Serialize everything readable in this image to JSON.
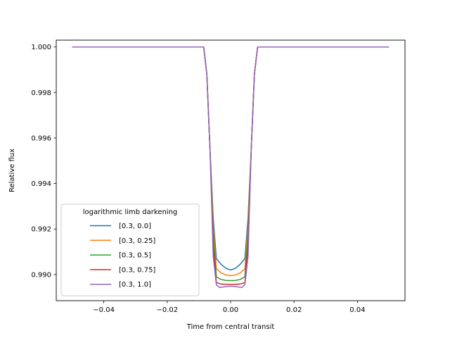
{
  "chart_data": {
    "type": "line",
    "xlabel": "Time from central transit",
    "ylabel": "Relative flux",
    "xlim": [
      -0.055,
      0.055
    ],
    "ylim": [
      0.98885,
      1.0003
    ],
    "x_ticks": [
      -0.04,
      -0.02,
      0.0,
      0.02,
      0.04
    ],
    "x_tick_labels": [
      "−0.04",
      "−0.02",
      "0.00",
      "0.02",
      "0.04"
    ],
    "y_ticks": [
      0.99,
      0.992,
      0.994,
      0.996,
      0.998,
      1.0
    ],
    "y_tick_labels": [
      "0.990",
      "0.992",
      "0.994",
      "0.996",
      "0.998",
      "1.000"
    ],
    "grid": false,
    "legend": {
      "title": "logarithmic limb darkening",
      "position": "lower-left"
    },
    "series": [
      {
        "name": "[0.3, 0.0]",
        "color": "#1f77b4",
        "x": [
          -0.05,
          -0.0085,
          -0.0075,
          -0.0065,
          -0.0055,
          -0.0045,
          -0.003,
          -0.0015,
          0.0,
          0.0015,
          0.003,
          0.0045,
          0.0055,
          0.0065,
          0.0075,
          0.0085,
          0.05
        ],
        "y": [
          1.0,
          1.0,
          0.9988,
          0.9955,
          0.9925,
          0.9907,
          0.99045,
          0.99027,
          0.9902,
          0.99027,
          0.99045,
          0.9907,
          0.9925,
          0.9955,
          0.9988,
          1.0,
          1.0
        ]
      },
      {
        "name": "[0.3, 0.25]",
        "color": "#ff7f0e",
        "x": [
          -0.05,
          -0.0085,
          -0.0075,
          -0.0065,
          -0.0055,
          -0.0045,
          -0.003,
          -0.0015,
          0.0,
          0.0015,
          0.003,
          0.0045,
          0.0055,
          0.0065,
          0.0075,
          0.0085,
          0.05
        ],
        "y": [
          1.0,
          1.0,
          0.9988,
          0.9955,
          0.9922,
          0.99025,
          0.99007,
          0.98998,
          0.98995,
          0.98998,
          0.99007,
          0.99025,
          0.9922,
          0.9955,
          0.9988,
          1.0,
          1.0
        ]
      },
      {
        "name": "[0.3, 0.5]",
        "color": "#2ca02c",
        "x": [
          -0.05,
          -0.0085,
          -0.0075,
          -0.0065,
          -0.0055,
          -0.0045,
          -0.003,
          -0.0015,
          0.0,
          0.0015,
          0.003,
          0.0045,
          0.0055,
          0.0065,
          0.0075,
          0.0085,
          0.05
        ],
        "y": [
          1.0,
          1.0,
          0.9988,
          0.9955,
          0.9918,
          0.9899,
          0.98978,
          0.98974,
          0.98973,
          0.98974,
          0.98978,
          0.9899,
          0.9918,
          0.9955,
          0.9988,
          1.0,
          1.0
        ]
      },
      {
        "name": "[0.3, 0.75]",
        "color": "#d62728",
        "x": [
          -0.05,
          -0.0085,
          -0.0075,
          -0.0065,
          -0.0055,
          -0.0045,
          -0.003,
          -0.0015,
          0.0,
          0.0015,
          0.003,
          0.0045,
          0.0055,
          0.0065,
          0.0075,
          0.0085,
          0.05
        ],
        "y": [
          1.0,
          1.0,
          0.9988,
          0.9955,
          0.9913,
          0.98965,
          0.98958,
          0.98957,
          0.98957,
          0.98957,
          0.98958,
          0.98965,
          0.9913,
          0.9955,
          0.9988,
          1.0,
          1.0
        ]
      },
      {
        "name": "[0.3, 1.0]",
        "color": "#9467bd",
        "x": [
          -0.05,
          -0.0085,
          -0.0075,
          -0.0065,
          -0.0055,
          -0.0045,
          -0.0035,
          -0.0015,
          0.0,
          0.0015,
          0.0035,
          0.0045,
          0.0055,
          0.0065,
          0.0075,
          0.0085,
          0.05
        ],
        "y": [
          1.0,
          1.0,
          0.9988,
          0.9955,
          0.9908,
          0.98955,
          0.98943,
          0.98947,
          0.98949,
          0.98947,
          0.98943,
          0.98955,
          0.9908,
          0.9955,
          0.9988,
          1.0,
          1.0
        ]
      }
    ]
  }
}
